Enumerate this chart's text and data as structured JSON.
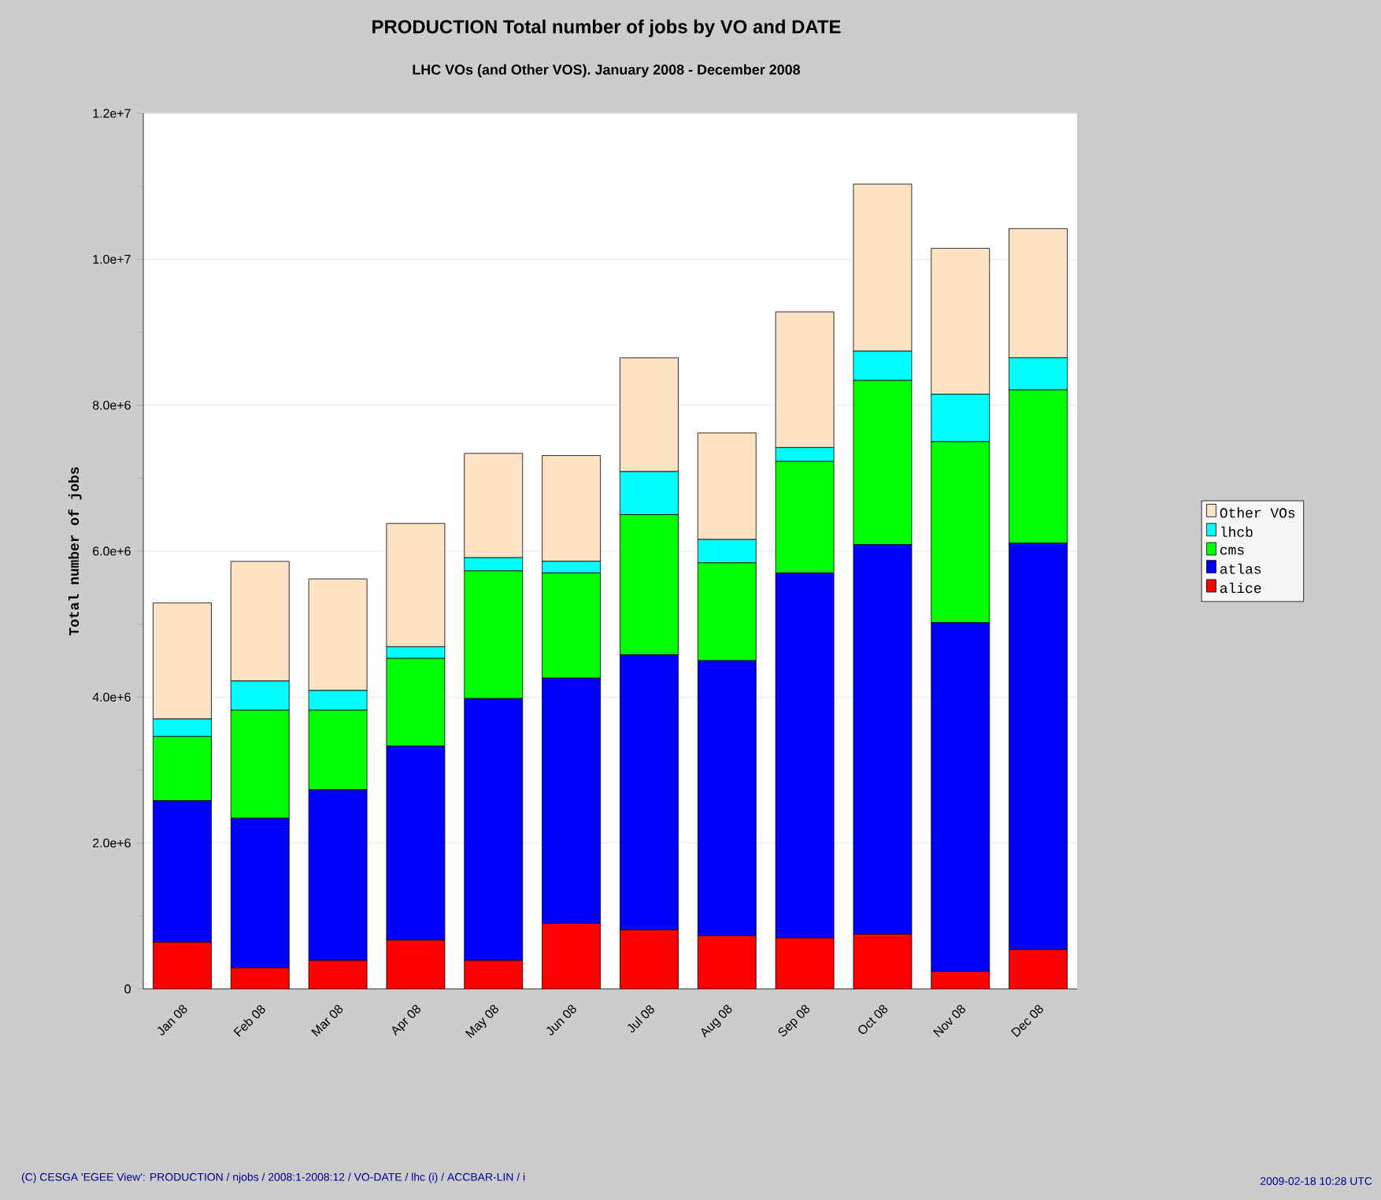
{
  "chart_data": {
    "type": "bar",
    "stacked": true,
    "title": "PRODUCTION Total number of jobs by VO and DATE",
    "subtitle": "LHC VOs (and Other VOS). January 2008 - December 2008",
    "ylabel": "Total number of jobs",
    "categories": [
      "Jan 08",
      "Feb 08",
      "Mar 08",
      "Apr 08",
      "May 08",
      "Jun 08",
      "Jul 08",
      "Aug 08",
      "Sep 08",
      "Oct 08",
      "Nov 08",
      "Dec 08"
    ],
    "series": [
      {
        "name": "alice",
        "color": "#ff0000",
        "values": [
          640000,
          290000,
          390000,
          670000,
          390000,
          900000,
          810000,
          730000,
          700000,
          750000,
          240000,
          540000
        ]
      },
      {
        "name": "atlas",
        "color": "#0000ff",
        "values": [
          1940000,
          2050000,
          2340000,
          2660000,
          3590000,
          3360000,
          3770000,
          3770000,
          5000000,
          5340000,
          4780000,
          5570000
        ]
      },
      {
        "name": "cms",
        "color": "#00ff00",
        "values": [
          880000,
          1480000,
          1090000,
          1200000,
          1750000,
          1440000,
          1920000,
          1340000,
          1530000,
          2250000,
          2480000,
          2100000
        ]
      },
      {
        "name": "lhcb",
        "color": "#00ffff",
        "values": [
          240000,
          400000,
          270000,
          160000,
          180000,
          160000,
          590000,
          320000,
          190000,
          400000,
          650000,
          440000
        ]
      },
      {
        "name": "Other VOs",
        "color": "#fde2c4",
        "values": [
          1590000,
          1640000,
          1530000,
          1690000,
          1430000,
          1450000,
          1560000,
          1460000,
          1860000,
          2290000,
          2000000,
          1770000
        ]
      }
    ],
    "ylim": [
      0,
      12000000
    ],
    "yticks": [
      {
        "value": 0,
        "label": "0"
      },
      {
        "value": 2000000,
        "label": "2.0e+6"
      },
      {
        "value": 4000000,
        "label": "4.0e+6"
      },
      {
        "value": 6000000,
        "label": "6.0e+6"
      },
      {
        "value": 8000000,
        "label": "8.0e+6"
      },
      {
        "value": 10000000,
        "label": "1.0e+7"
      },
      {
        "value": 12000000,
        "label": "1.2e+7"
      }
    ],
    "grid": "y",
    "legend": "right",
    "annotations": [
      "(C) CESGA 'EGEE View': PRODUCTION / njobs / 2008:1-2008:12 / VO-DATE / lhc (i) / ACCBAR-LIN / i",
      "2009-02-18 10:28 UTC"
    ]
  }
}
